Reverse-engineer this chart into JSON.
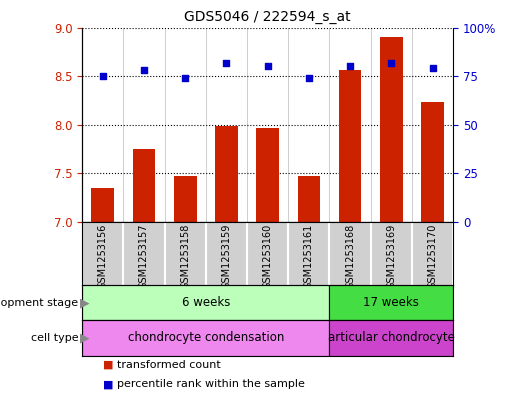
{
  "title": "GDS5046 / 222594_s_at",
  "samples": [
    "GSM1253156",
    "GSM1253157",
    "GSM1253158",
    "GSM1253159",
    "GSM1253160",
    "GSM1253161",
    "GSM1253168",
    "GSM1253169",
    "GSM1253170"
  ],
  "bar_values": [
    7.35,
    7.75,
    7.47,
    7.99,
    7.97,
    7.47,
    8.56,
    8.9,
    8.23
  ],
  "dot_values": [
    75,
    78,
    74,
    82,
    80,
    74,
    80,
    82,
    79
  ],
  "ylim_left": [
    7,
    9
  ],
  "ylim_right": [
    0,
    100
  ],
  "yticks_left": [
    7,
    7.5,
    8,
    8.5,
    9
  ],
  "yticks_right": [
    0,
    25,
    50,
    75,
    100
  ],
  "bar_color": "#cc2200",
  "dot_color": "#0000cc",
  "bar_bottom": 7,
  "groups": {
    "development_stage": [
      {
        "label": "6 weeks",
        "start": 0,
        "end": 6,
        "color": "#bbffbb"
      },
      {
        "label": "17 weeks",
        "start": 6,
        "end": 9,
        "color": "#44dd44"
      }
    ],
    "cell_type": [
      {
        "label": "chondrocyte condensation",
        "start": 0,
        "end": 6,
        "color": "#ee88ee"
      },
      {
        "label": "articular chondrocyte",
        "start": 6,
        "end": 9,
        "color": "#cc44cc"
      }
    ]
  },
  "legend": [
    {
      "label": "transformed count",
      "color": "#cc2200"
    },
    {
      "label": "percentile rank within the sample",
      "color": "#0000cc"
    }
  ],
  "dev_stage_label": "development stage",
  "cell_type_label": "cell type",
  "title_fontsize": 10,
  "axis_label_color_left": "#cc2200",
  "axis_label_color_right": "#0000cc",
  "sample_label_fontsize": 7,
  "group_label_fontsize": 8.5,
  "legend_fontsize": 8
}
